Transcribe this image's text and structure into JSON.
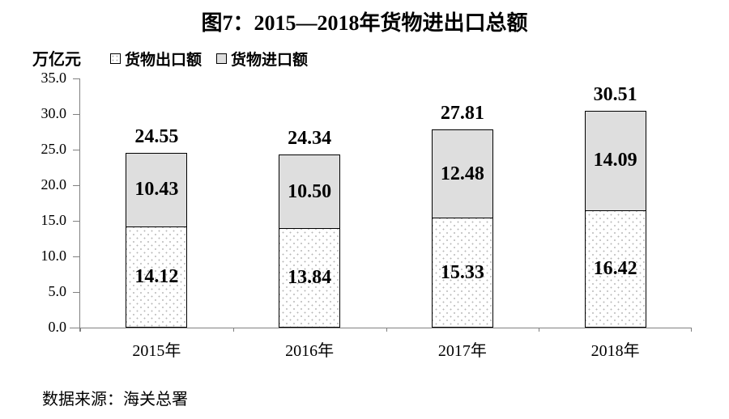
{
  "title": "图7：2015—2018年货物进出口总额",
  "y_unit": "万亿元",
  "legend": [
    {
      "label": "货物出口额",
      "style": "dotted-white"
    },
    {
      "label": "货物进口额",
      "style": "solid-gray"
    }
  ],
  "source": "数据来源：海关总署",
  "chart_data": {
    "type": "bar",
    "stacked": true,
    "title": "图7：2015—2018年货物进出口总额",
    "ylabel": "万亿元",
    "categories": [
      "2015年",
      "2016年",
      "2017年",
      "2018年"
    ],
    "series": [
      {
        "name": "货物出口额",
        "values": [
          14.12,
          13.84,
          15.33,
          16.42
        ]
      },
      {
        "name": "货物进口额",
        "values": [
          10.43,
          10.5,
          12.48,
          14.09
        ]
      }
    ],
    "totals": [
      24.55,
      24.34,
      27.81,
      30.51
    ],
    "ylim": [
      0,
      35
    ],
    "ytick_step": 5,
    "ytick_labels": [
      "0.0",
      "5.0",
      "10.0",
      "15.0",
      "20.0",
      "25.0",
      "30.0",
      "35.0"
    ],
    "grid": false,
    "legend_position": "top",
    "colors": {
      "export_fill": "#ffffff",
      "export_dots": "#b8b8b8",
      "import_fill": "#dedede",
      "bar_border": "#000000",
      "axis": "#808080",
      "text": "#000000"
    }
  }
}
